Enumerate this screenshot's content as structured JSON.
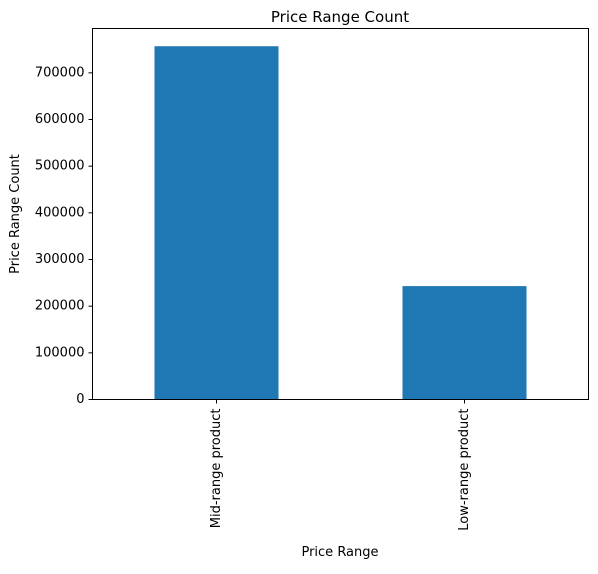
{
  "chart_data": {
    "type": "bar",
    "title": "Price Range Count",
    "xlabel": "Price Range",
    "ylabel": "Price Range Count",
    "categories": [
      "Mid-range product",
      "Low-range product"
    ],
    "values": [
      757000,
      243000
    ],
    "ylim": [
      0,
      795000
    ],
    "yticks": [
      0,
      100000,
      200000,
      300000,
      400000,
      500000,
      600000,
      700000
    ],
    "ytick_labels": [
      "0",
      "100000",
      "200000",
      "300000",
      "400000",
      "500000",
      "600000",
      "700000"
    ],
    "bar_color": "#1f77b4",
    "grid": false,
    "legend": "none"
  }
}
